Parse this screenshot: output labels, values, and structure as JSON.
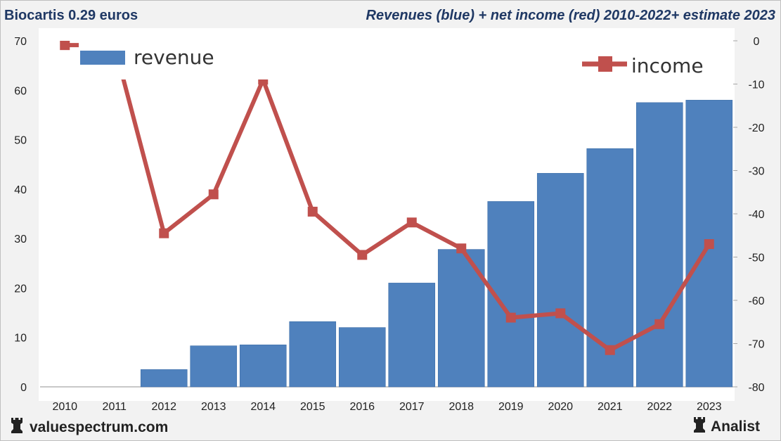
{
  "header": {
    "company": "Biocartis 0.29 euros",
    "subtitle": "Revenues (blue) + net income (red) 2010-2022+ estimate 2023"
  },
  "footer": {
    "site": "valuespectrum.com",
    "brand": "Analist"
  },
  "colors": {
    "revenue": "#4f81bd",
    "income": "#c0504d",
    "title": "#1f3864"
  },
  "icons": {
    "footer_left": "chess-rook-icon",
    "footer_right": "chess-rook-icon"
  },
  "chart_data": {
    "type": "bar",
    "categories": [
      "2010",
      "2011",
      "2012",
      "2013",
      "2014",
      "2015",
      "2016",
      "2017",
      "2018",
      "2019",
      "2020",
      "2021",
      "2022",
      "2023"
    ],
    "series": [
      {
        "name": "revenue",
        "axis": "left",
        "type": "bar",
        "values": [
          0,
          0,
          3.5,
          8.3,
          8.5,
          13.2,
          12,
          21,
          27.8,
          37.5,
          43.2,
          48.2,
          57.5,
          58
        ]
      },
      {
        "name": "income",
        "axis": "right",
        "type": "line",
        "values": [
          -1,
          -1,
          -44.5,
          -35.5,
          -9,
          -39.5,
          -49.5,
          -42,
          -48,
          -64,
          -63,
          -71.5,
          -65.5,
          -47
        ]
      }
    ],
    "ylim_left": [
      0,
      70
    ],
    "ylim_right": [
      -80,
      0
    ],
    "yticks_left": [
      "0",
      "10",
      "20",
      "30",
      "40",
      "50",
      "60",
      "70"
    ],
    "yticks_right": [
      "0",
      "-10",
      "-20",
      "-30",
      "-40",
      "-50",
      "-60",
      "-70",
      "-80"
    ],
    "grid": false,
    "legend": [
      {
        "label": "revenue",
        "position": "top-left"
      },
      {
        "label": "income",
        "position": "top-right"
      }
    ]
  }
}
